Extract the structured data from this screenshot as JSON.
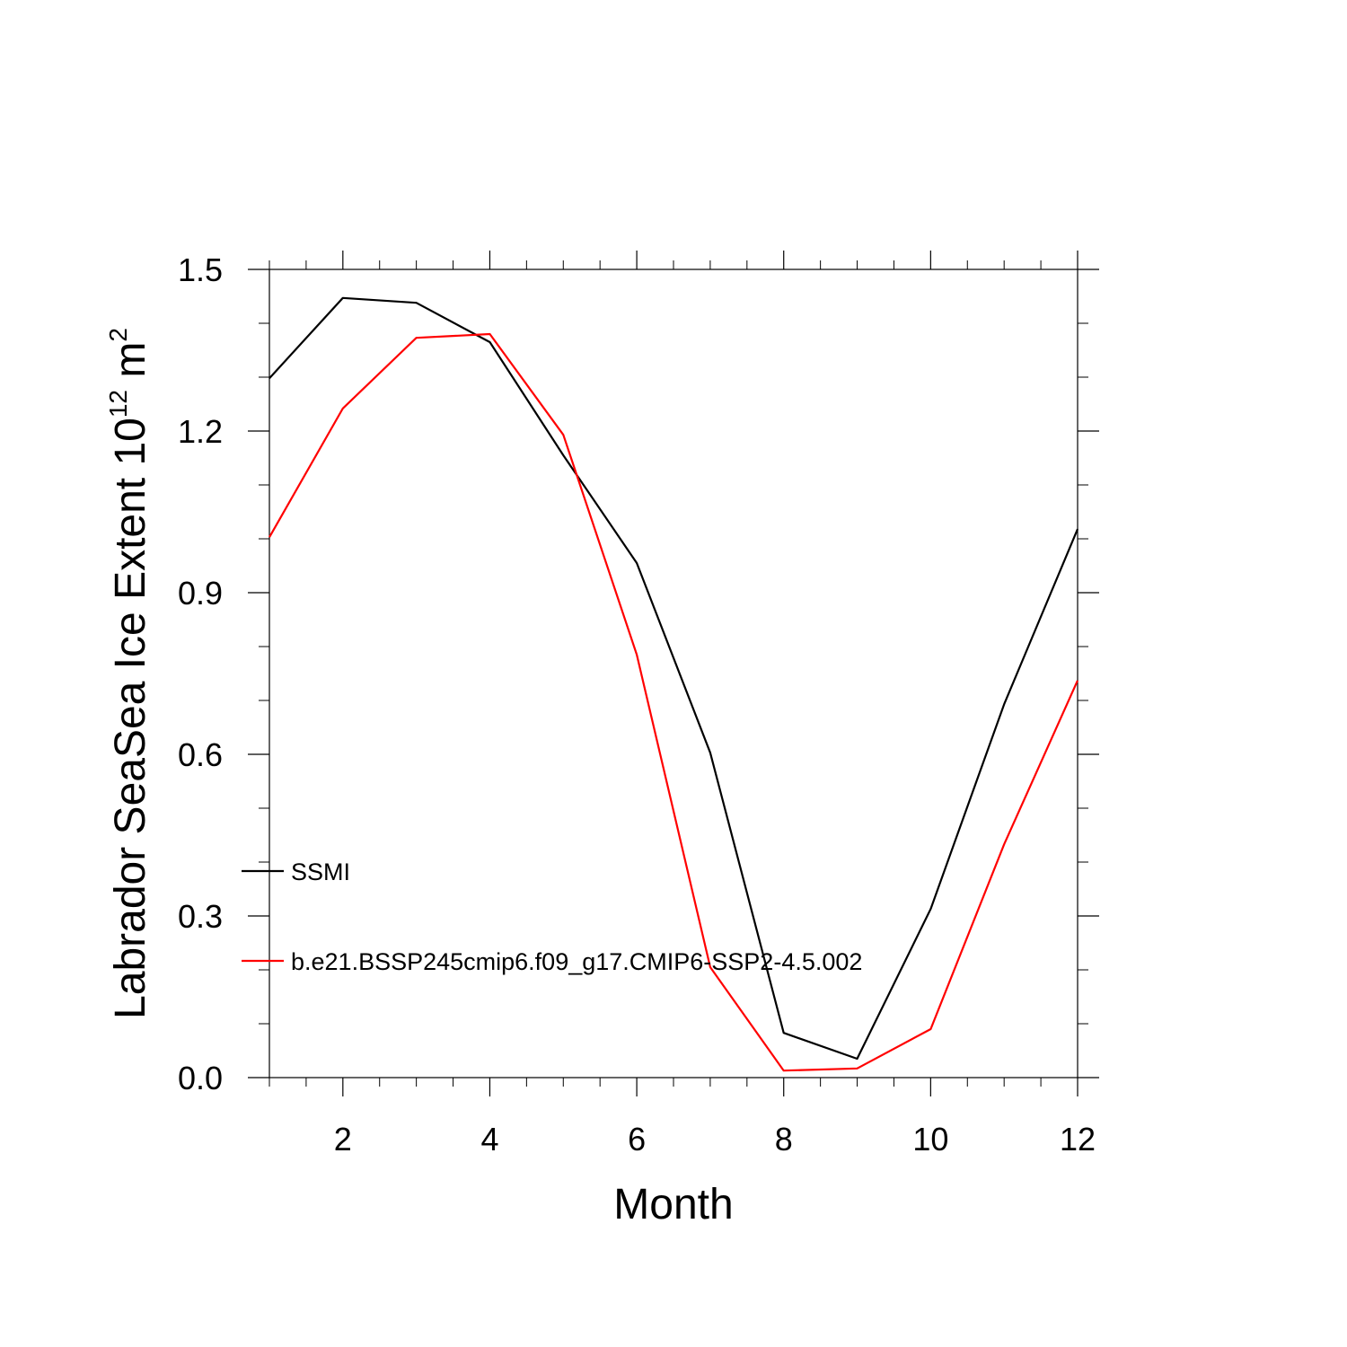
{
  "chart_data": {
    "type": "line",
    "title": "",
    "xlabel": "Month",
    "ylabel_main": "Labrador SeaSea Ice Extent 10",
    "ylabel_sup": "12",
    "ylabel_unit": " m",
    "ylabel_unit_sup": "2",
    "xlim": [
      1,
      12
    ],
    "ylim": [
      0.0,
      1.5
    ],
    "x_ticks": [
      2,
      4,
      6,
      8,
      10,
      12
    ],
    "x_tick_labels": [
      "2",
      "4",
      "6",
      "8",
      "10",
      "12"
    ],
    "y_ticks": [
      0.0,
      0.3,
      0.6,
      0.9,
      1.2,
      1.5
    ],
    "y_tick_labels": [
      "0.0",
      "0.3",
      "0.6",
      "0.9",
      "1.2",
      "1.5"
    ],
    "grid": false,
    "legend_position": "lower-left inside",
    "x": [
      1,
      2,
      3,
      4,
      5,
      6,
      7,
      8,
      9,
      10,
      11,
      12
    ],
    "series": [
      {
        "name": "SSMI",
        "color": "#000000",
        "values": [
          1.298,
          1.447,
          1.438,
          1.365,
          1.155,
          0.955,
          0.603,
          0.083,
          0.035,
          0.313,
          0.693,
          1.018
        ]
      },
      {
        "name": "b.e21.BSSP245cmip6.f09_g17.CMIP6-SSP2-4.5.002",
        "color": "#ff0000",
        "values": [
          1.003,
          1.242,
          1.373,
          1.38,
          1.193,
          0.785,
          0.205,
          0.013,
          0.017,
          0.09,
          0.433,
          0.737
        ]
      }
    ]
  }
}
